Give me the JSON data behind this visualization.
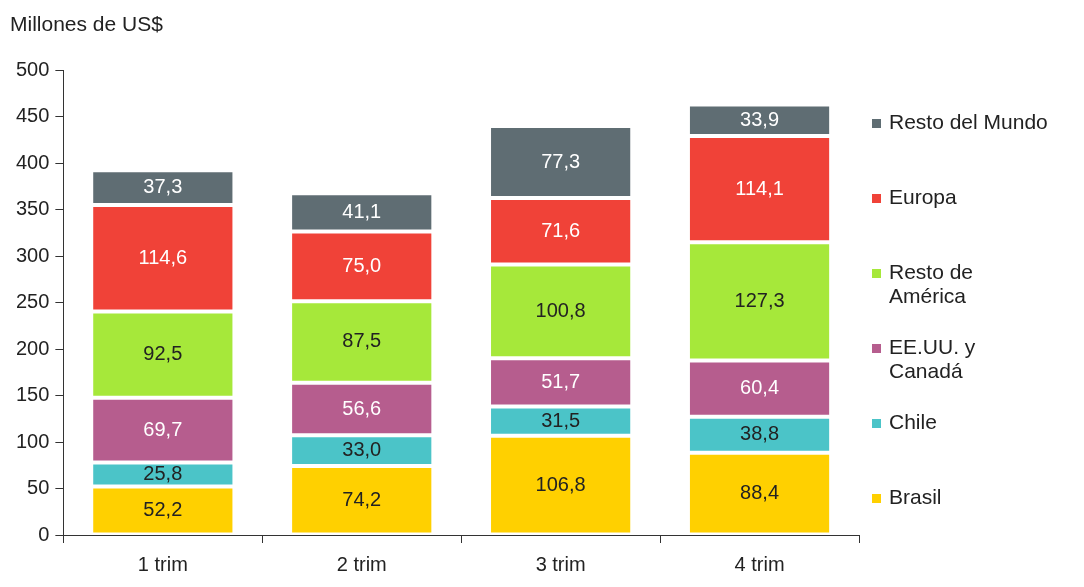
{
  "chart_data": {
    "type": "bar",
    "stacked": true,
    "ylabel": "Millones de US$",
    "categories": [
      "1 trim",
      "2 trim",
      "3 trim",
      "4 trim"
    ],
    "ylim": [
      0,
      500
    ],
    "yticks": [
      0,
      50,
      100,
      150,
      200,
      250,
      300,
      350,
      400,
      450,
      500
    ],
    "grid": false,
    "legend": "right",
    "series": [
      {
        "name": "Brasil",
        "color": "#ffd000",
        "values": [
          52.2,
          74.2,
          106.8,
          88.4
        ],
        "value_labels": [
          "52,2",
          "74,2",
          "106,8",
          "88,4"
        ]
      },
      {
        "name": "Chile",
        "color": "#4bc4c8",
        "values": [
          25.8,
          33.0,
          31.5,
          38.8
        ],
        "value_labels": [
          "25,8",
          "33,0",
          "31,5",
          "38,8"
        ]
      },
      {
        "name": "EE.UU. y Canadá",
        "color": "#b65d8e",
        "values": [
          69.7,
          56.6,
          51.7,
          60.4
        ],
        "value_labels": [
          "69,7",
          "56,6",
          "51,7",
          "60,4"
        ]
      },
      {
        "name": "Resto de América",
        "color": "#a6e83a",
        "values": [
          92.5,
          87.5,
          100.8,
          127.3
        ],
        "value_labels": [
          "92,5",
          "87,5",
          "100,8",
          "127,3"
        ]
      },
      {
        "name": "Europa",
        "color": "#f04238",
        "values": [
          114.6,
          75.0,
          71.6,
          114.1
        ],
        "value_labels": [
          "114,6",
          "75,0",
          "71,6",
          "114,1"
        ]
      },
      {
        "name": "Resto del Mundo",
        "color": "#5f6d73",
        "values": [
          37.3,
          41.1,
          77.3,
          33.9
        ],
        "value_labels": [
          "37,3",
          "41,1",
          "77,3",
          "33,9"
        ]
      }
    ]
  }
}
